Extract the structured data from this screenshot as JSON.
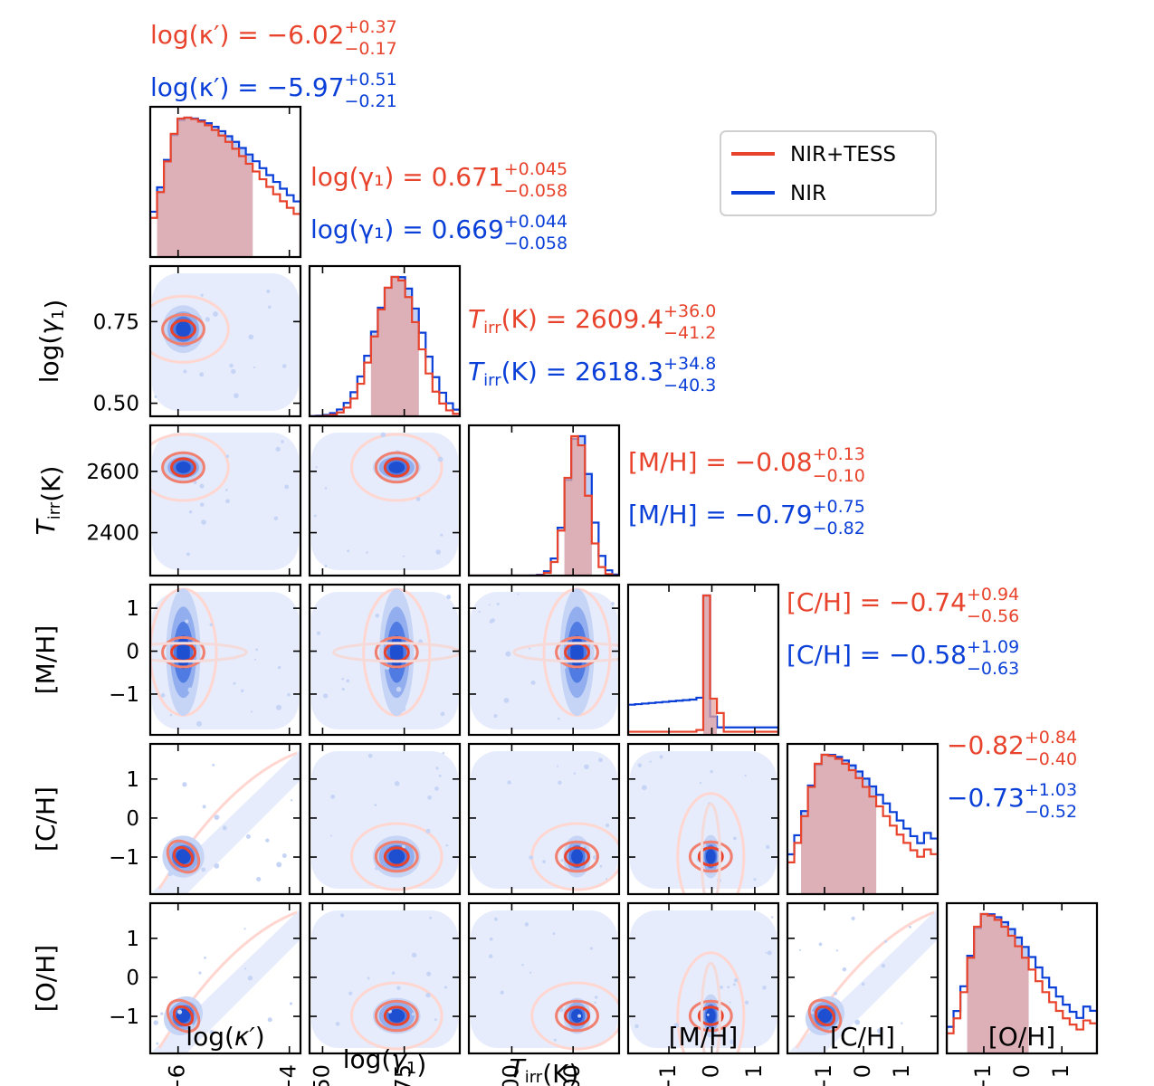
{
  "colors": {
    "red": "#E8432C",
    "blue": "#0A3FD8",
    "fill_red": "#E6A5A0",
    "fill_blue": "#A9BFF1",
    "contour_blue": [
      "#E6ECFB",
      "#C6D4F6",
      "#92AEEE",
      "#4F7BE3",
      "#1E4FD0"
    ],
    "contour_red": "#FFD6D0"
  },
  "chart_data": {
    "type": "corner",
    "legend": {
      "position": "top-right",
      "entries": [
        {
          "label": "NIR+TESS",
          "color": "#E8432C"
        },
        {
          "label": "NIR",
          "color": "#0A3FD8"
        }
      ]
    },
    "params": [
      {
        "key": "kappa",
        "label_pre": "log(",
        "label_it": "κ′",
        "label_post": ")",
        "label_sub": "",
        "range": [
          -6.5,
          -3.8
        ],
        "ticks": [
          -6,
          -4
        ],
        "mode": 0.22,
        "spread": 0.12,
        "skew": 4.0,
        "ylabel_rot": false,
        "titles": [
          {
            "prefix": "log(κ′) = ",
            "value": "−6.02",
            "plus": "+0.37",
            "minus": "−0.17",
            "color": "#E8432C"
          },
          {
            "prefix": "log(κ′) = ",
            "value": "−5.97",
            "plus": "+0.51",
            "minus": "−0.21",
            "color": "#0A3FD8"
          }
        ]
      },
      {
        "key": "gamma",
        "label_pre": "log(",
        "label_it": "γ",
        "label_sub": "1",
        "label_post": ")",
        "range": [
          0.46,
          0.92
        ],
        "ticks": [
          0.5,
          0.75
        ],
        "tick_labels": [
          "0.50",
          "0.75"
        ],
        "mode": 0.58,
        "spread": 0.14,
        "skew": 1.0,
        "titles": [
          {
            "prefix": "log(γ₁) = ",
            "value": "0.671",
            "plus": "+0.045",
            "minus": "−0.058",
            "color": "#E8432C"
          },
          {
            "prefix": "log(γ₁) = ",
            "value": "0.669",
            "plus": "+0.044",
            "minus": "−0.058",
            "color": "#0A3FD8"
          }
        ]
      },
      {
        "key": "tirr",
        "label_pre": "",
        "label_it": "T",
        "label_sub": "irr",
        "label_post": "(K)",
        "range": [
          2260,
          2750
        ],
        "ticks": [
          2400,
          2600
        ],
        "mode": 0.72,
        "spread": 0.07,
        "skew": 1.0,
        "titles": [
          {
            "prefix": "T_irr(K) = ",
            "value": "2609.4",
            "plus": "+36.0",
            "minus": "−41.2",
            "color": "#E8432C"
          },
          {
            "prefix": "T_irr(K) = ",
            "value": "2618.3",
            "plus": "+34.8",
            "minus": "−40.3",
            "color": "#0A3FD8"
          }
        ]
      },
      {
        "key": "mh",
        "label_pre": "[M/H]",
        "label_it": "",
        "label_sub": "",
        "label_post": "",
        "range": [
          -1.95,
          1.55
        ],
        "ticks": [
          -1,
          0,
          1
        ],
        "tick_labels": [
          "−1",
          "0",
          "1"
        ],
        "mode": 0.55,
        "spread": 0.04,
        "skew": 1.0,
        "titles": [
          {
            "prefix": "[M/H] = ",
            "value": "−0.08",
            "plus": "+0.13",
            "minus": "−0.10",
            "color": "#E8432C"
          },
          {
            "prefix": "[M/H] = ",
            "value": "−0.79",
            "plus": "+0.75",
            "minus": "−0.82",
            "color": "#0A3FD8"
          }
        ]
      },
      {
        "key": "ch",
        "label_pre": "[C/H]",
        "label_it": "",
        "label_sub": "",
        "label_post": "",
        "range": [
          -1.95,
          1.9
        ],
        "ticks": [
          -1,
          0,
          1
        ],
        "tick_labels": [
          "−1",
          "0",
          "1"
        ],
        "mode": 0.25,
        "spread": 0.12,
        "skew": 3.0,
        "titles": [
          {
            "prefix": "[C/H] = ",
            "value": "−0.74",
            "plus": "+0.94",
            "minus": "−0.56",
            "color": "#E8432C"
          },
          {
            "prefix": "[C/H] = ",
            "value": "−0.58",
            "plus": "+1.09",
            "minus": "−0.63",
            "color": "#0A3FD8"
          }
        ]
      },
      {
        "key": "oh",
        "label_pre": "[O/H]",
        "label_it": "",
        "label_sub": "",
        "label_post": "",
        "range": [
          -1.95,
          1.9
        ],
        "ticks": [
          -1,
          0,
          1
        ],
        "tick_labels": [
          "−1",
          "0",
          "1"
        ],
        "mode": 0.25,
        "spread": 0.1,
        "skew": 3.0,
        "titles": [
          {
            "prefix": "",
            "value": "−0.82",
            "plus": "+0.84",
            "minus": "−0.40",
            "color": "#E8432C"
          },
          {
            "prefix": "",
            "value": "−0.73",
            "plus": "+1.03",
            "minus": "−0.52",
            "color": "#0A3FD8"
          }
        ]
      }
    ]
  }
}
